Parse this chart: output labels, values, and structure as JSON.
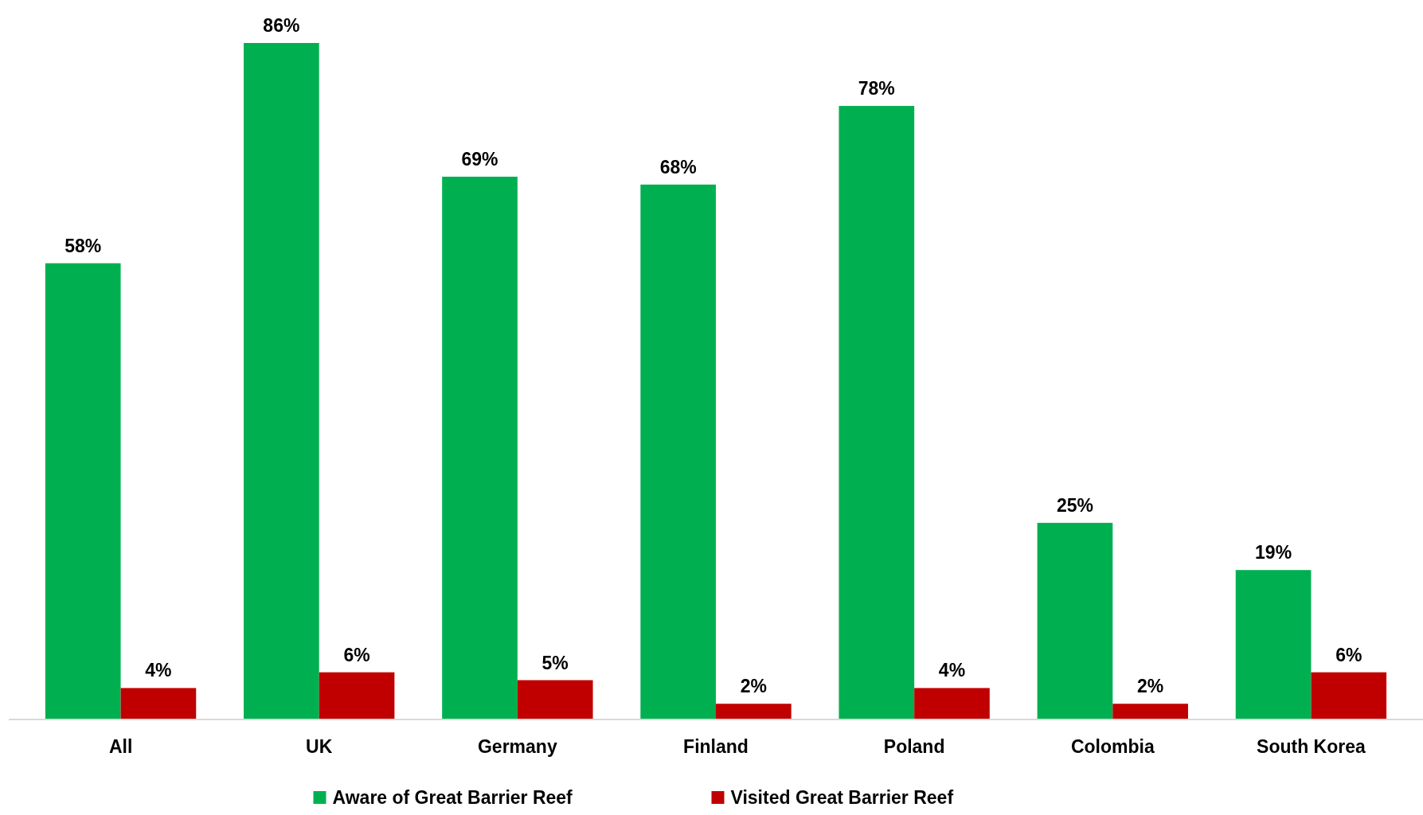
{
  "chart_data": {
    "type": "bar",
    "categories": [
      "All",
      "UK",
      "Germany",
      "Finland",
      "Poland",
      "Colombia",
      "South Korea"
    ],
    "series": [
      {
        "name": "Aware of Great Barrier Reef",
        "color": "#00b050",
        "values": [
          58,
          86,
          69,
          68,
          78,
          25,
          19
        ],
        "value_labels": [
          "58%",
          "86%",
          "69%",
          "68%",
          "78%",
          "25%",
          "19%"
        ]
      },
      {
        "name": "Visited Great Barrier Reef",
        "color": "#c00000",
        "values": [
          4,
          6,
          5,
          2,
          4,
          2,
          6
        ],
        "value_labels": [
          "4%",
          "6%",
          "5%",
          "2%",
          "4%",
          "2%",
          "6%"
        ]
      }
    ],
    "legend": "bottom",
    "tick_labels": "x",
    "grid": false
  }
}
